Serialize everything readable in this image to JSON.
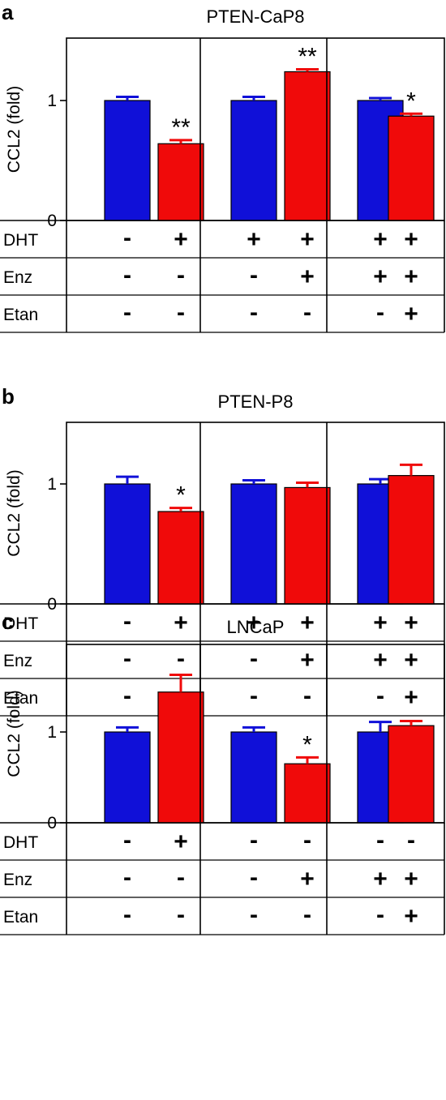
{
  "colors": {
    "control": "#1010d8",
    "treated": "#f00a0a",
    "frame": "#000000"
  },
  "row_labels": [
    "DHT",
    "Enz",
    "Etan"
  ],
  "ylabel": "CCL2 (fold)",
  "chart_data": [
    {
      "panel": "a",
      "title": "PTEN-CaP8",
      "type": "bar",
      "ylabel": "CCL2 (fold)",
      "ylim": [
        0,
        1.5
      ],
      "yticks": [
        "0",
        "1"
      ],
      "values": [
        1.0,
        0.64,
        1.0,
        1.24,
        1.0,
        0.87
      ],
      "errors": [
        0.03,
        0.03,
        0.03,
        0.02,
        0.02,
        0.02
      ],
      "colors": [
        "control",
        "treated",
        "control",
        "treated",
        "control",
        "treated"
      ],
      "significance": [
        "",
        "**",
        "",
        "**",
        "",
        "*"
      ],
      "conditions": {
        "DHT": [
          "-",
          "+",
          "+",
          "+",
          "+",
          "+"
        ],
        "Enz": [
          "-",
          "-",
          "-",
          "+",
          "+",
          "+"
        ],
        "Etan": [
          "-",
          "-",
          "-",
          "-",
          "-",
          "+"
        ]
      }
    },
    {
      "panel": "b",
      "title": "PTEN-P8",
      "type": "bar",
      "ylabel": "CCL2 (fold)",
      "ylim": [
        0,
        1.5
      ],
      "yticks": [
        "0",
        "1"
      ],
      "values": [
        1.0,
        0.77,
        1.0,
        0.97,
        1.0,
        1.07
      ],
      "errors": [
        0.06,
        0.03,
        0.03,
        0.04,
        0.04,
        0.09
      ],
      "colors": [
        "control",
        "treated",
        "control",
        "treated",
        "control",
        "treated"
      ],
      "significance": [
        "",
        "*",
        "",
        "",
        "",
        ""
      ],
      "conditions": {
        "DHT": [
          "-",
          "+",
          "+",
          "+",
          "+",
          "+"
        ],
        "Enz": [
          "-",
          "-",
          "-",
          "+",
          "+",
          "+"
        ],
        "Etan": [
          "-",
          "-",
          "-",
          "-",
          "-",
          "+"
        ]
      }
    },
    {
      "panel": "c",
      "title": "LNCaP",
      "type": "bar",
      "ylabel": "CCL2 (fold)",
      "ylim": [
        0,
        1.9
      ],
      "yticks": [
        "0",
        "1"
      ],
      "values": [
        1.0,
        1.44,
        1.0,
        0.65,
        1.0,
        1.07
      ],
      "errors": [
        0.05,
        0.19,
        0.05,
        0.07,
        0.11,
        0.05
      ],
      "colors": [
        "control",
        "treated",
        "control",
        "treated",
        "control",
        "treated"
      ],
      "significance": [
        "",
        "",
        "",
        "*",
        "",
        ""
      ],
      "conditions": {
        "DHT": [
          "-",
          "+",
          "-",
          "-",
          "-",
          "-"
        ],
        "Enz": [
          "-",
          "-",
          "-",
          "+",
          "+",
          "+"
        ],
        "Etan": [
          "-",
          "-",
          "-",
          "-",
          "-",
          "+"
        ]
      }
    }
  ]
}
